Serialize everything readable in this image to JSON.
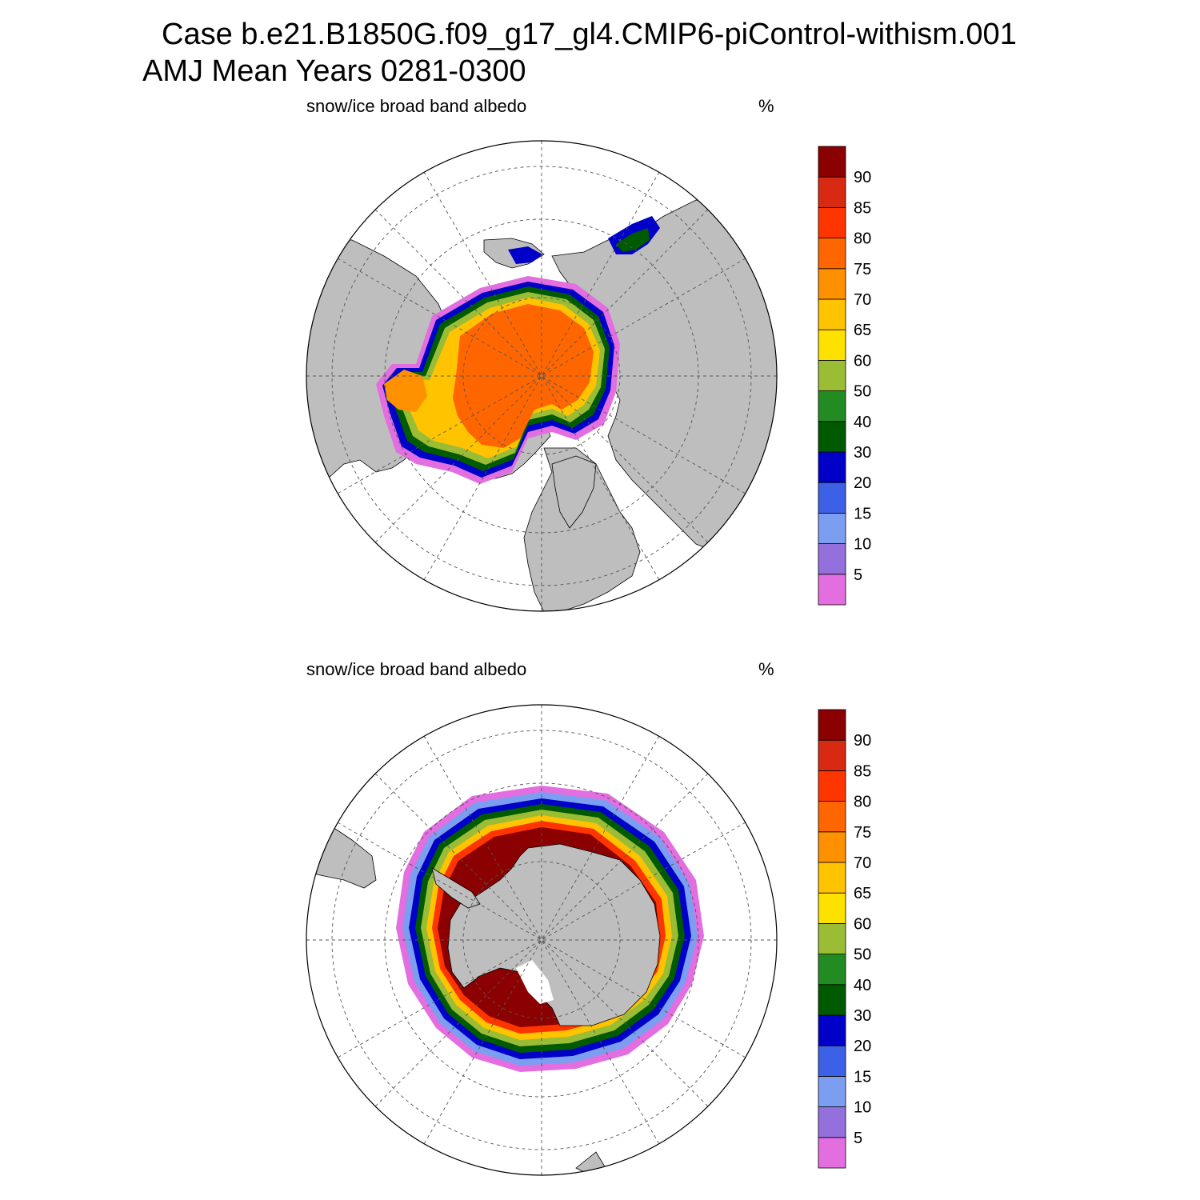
{
  "title": {
    "line1": "Case b.e21.B1850G.f09_g17_gl4.CMIP6-piControl-withism.001",
    "line2": "AMJ Mean   Years 0281-0300"
  },
  "panels": [
    {
      "id": "north",
      "variable": "snow/ice broad band albedo",
      "units": "%"
    },
    {
      "id": "south",
      "variable": "snow/ice broad band albedo",
      "units": "%"
    }
  ],
  "colors": {
    "land": "#bebebe",
    "ocean": "#ffffff",
    "levels": [
      "#e26ee0",
      "#9370db",
      "#7c9ef0",
      "#3d61e6",
      "#0000c8",
      "#005a00",
      "#228b22",
      "#9abd35",
      "#ffe100",
      "#ffc300",
      "#ff9000",
      "#ff6600",
      "#ff3500",
      "#d82a12",
      "#8b0000"
    ]
  },
  "colorbar": {
    "labels": [
      "5",
      "10",
      "15",
      "20",
      "30",
      "40",
      "50",
      "60",
      "65",
      "70",
      "75",
      "80",
      "85",
      "90"
    ]
  },
  "chart_data": {
    "type": "heatmap",
    "projection": "polar stereographic",
    "field": "snow/ice broad band albedo",
    "units": "%",
    "contour_levels": [
      5,
      10,
      15,
      20,
      30,
      40,
      50,
      60,
      65,
      70,
      75,
      80,
      85,
      90
    ],
    "maps": [
      {
        "hemisphere": "north",
        "central_arctic_albedo_range": [
          75,
          80
        ],
        "marginal_ice_range": [
          5,
          60
        ]
      },
      {
        "hemisphere": "south",
        "weddell_ross_albedo_range": [
          90,
          100
        ],
        "ice_edge_range": [
          5,
          30
        ]
      }
    ]
  }
}
